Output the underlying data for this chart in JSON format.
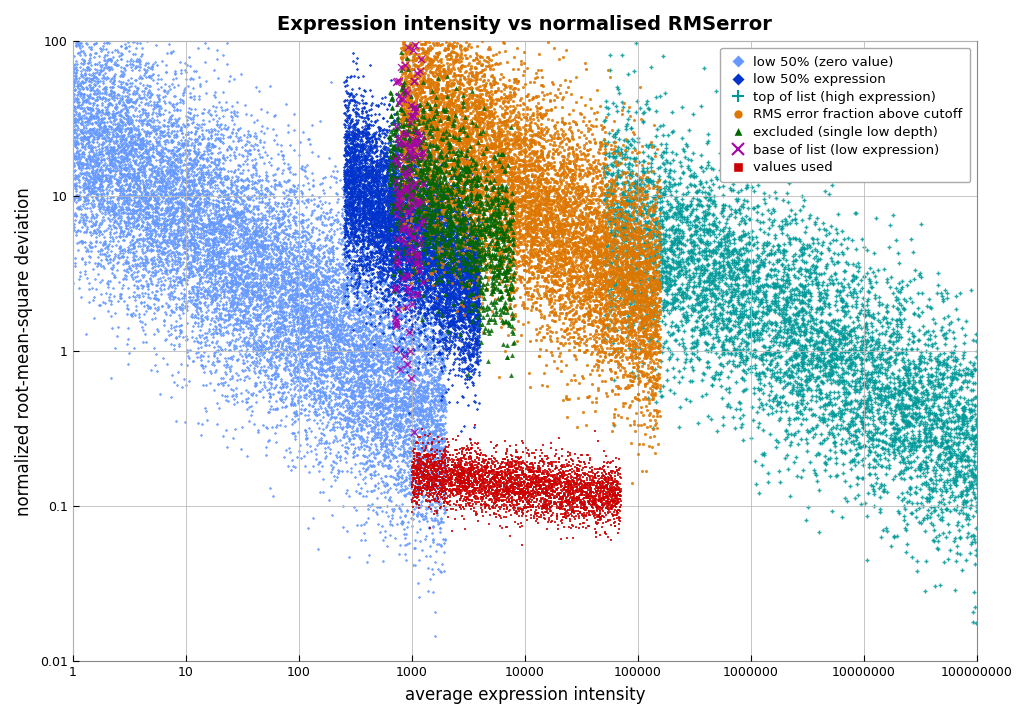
{
  "title": "Expression intensity vs normalised RMSerror",
  "xlabel": "average expression intensity",
  "ylabel": "normalized root-mean-square deviation",
  "xlim": [
    1,
    100000000.0
  ],
  "ylim": [
    0.01,
    100
  ],
  "background_color": "#ffffff",
  "series": {
    "low50_zero": {
      "color": "#6699ff",
      "marker": "D",
      "s": 3,
      "n": 15000,
      "x_log_min": 0.0,
      "x_log_max": 3.3,
      "slope": -0.58,
      "intercept": 1.45,
      "noise": 0.42
    },
    "low50_expr": {
      "color": "#0033cc",
      "marker": "D",
      "s": 3,
      "n": 8000,
      "x_log_min": 2.4,
      "x_log_max": 3.6,
      "slope": -0.65,
      "intercept": 2.7,
      "noise": 0.28
    },
    "top_list": {
      "color": "#009999",
      "marker": "+",
      "s": 12,
      "n": 6000,
      "x_log_min": 4.7,
      "x_log_max": 8.0,
      "slope": -0.48,
      "intercept": 3.2,
      "noise": 0.38
    },
    "rms_above": {
      "color": "#dd7700",
      "marker": "o",
      "s": 5,
      "n": 10000,
      "x_log_min": 2.9,
      "x_log_max": 5.2,
      "slope": -0.6,
      "intercept": 3.4,
      "noise": 0.38
    },
    "excluded": {
      "color": "#006600",
      "marker": "^",
      "s": 12,
      "n": 1500,
      "x_log_min": 2.8,
      "x_log_max": 3.9,
      "slope": -0.62,
      "intercept": 3.0,
      "noise": 0.28
    },
    "base_list": {
      "color": "#aa00aa",
      "marker": "x",
      "s": 25,
      "n": 150,
      "x_log_min": 2.85,
      "x_log_max": 3.1,
      "slope": -0.5,
      "intercept": 2.5,
      "noise": 0.55
    },
    "values_used": {
      "color": "#cc0000",
      "marker": "s",
      "s": 4,
      "n": 4000,
      "x_log_min": 3.0,
      "x_log_max": 4.85,
      "slope": -0.08,
      "intercept": -0.55,
      "noise": 0.1
    }
  },
  "legend": [
    {
      "label": "low 50% (zero value)",
      "color": "#6699ff",
      "marker": "D"
    },
    {
      "label": "low 50% expression",
      "color": "#0033cc",
      "marker": "D"
    },
    {
      "label": "top of list (high expression)",
      "color": "#009999",
      "marker": "+"
    },
    {
      "label": "RMS error fraction above cutoff",
      "color": "#dd7700",
      "marker": "o"
    },
    {
      "label": "excluded (single low depth)",
      "color": "#006600",
      "marker": "^"
    },
    {
      "label": "base of list (low expression)",
      "color": "#aa00aa",
      "marker": "x"
    },
    {
      "label": "values used",
      "color": "#cc0000",
      "marker": "s"
    }
  ]
}
